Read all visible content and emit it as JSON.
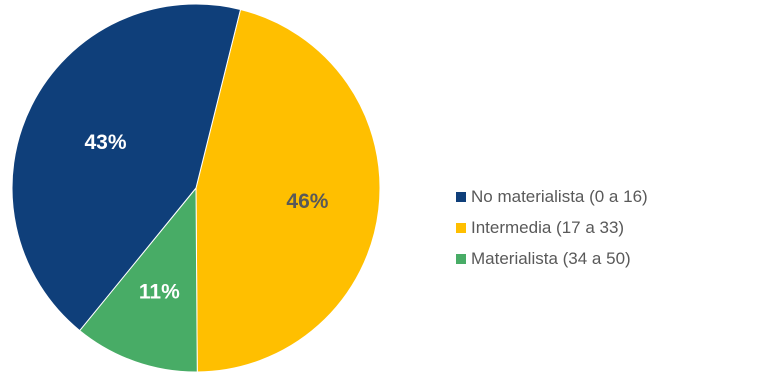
{
  "chart_data": {
    "type": "pie",
    "categories": [
      "No materialista (0 a 16)",
      "Intermedia (17 a 33)",
      "Materialista (34 a 50)"
    ],
    "values": [
      43,
      46,
      11
    ],
    "data_labels": [
      "43%",
      "46%",
      "11%"
    ],
    "colors": [
      "#0f3f7a",
      "#ffbf00",
      "#48ac66"
    ],
    "label_colors": [
      "#ffffff",
      "#595959",
      "#ffffff"
    ],
    "legend_position": "right"
  }
}
